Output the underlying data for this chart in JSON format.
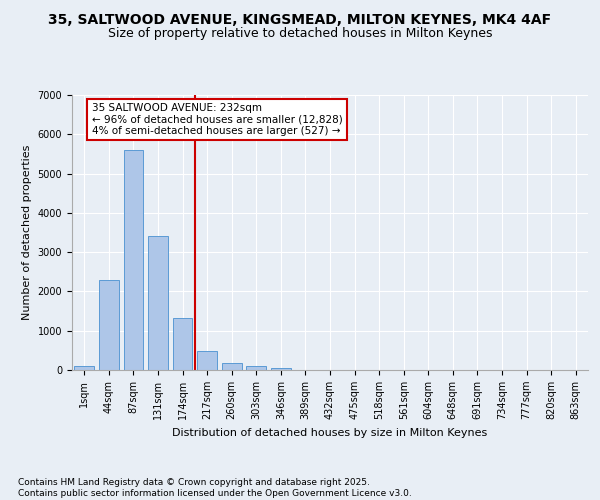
{
  "title_line1": "35, SALTWOOD AVENUE, KINGSMEAD, MILTON KEYNES, MK4 4AF",
  "title_line2": "Size of property relative to detached houses in Milton Keynes",
  "xlabel": "Distribution of detached houses by size in Milton Keynes",
  "ylabel": "Number of detached properties",
  "categories": [
    "1sqm",
    "44sqm",
    "87sqm",
    "131sqm",
    "174sqm",
    "217sqm",
    "260sqm",
    "303sqm",
    "346sqm",
    "389sqm",
    "432sqm",
    "475sqm",
    "518sqm",
    "561sqm",
    "604sqm",
    "648sqm",
    "691sqm",
    "734sqm",
    "777sqm",
    "820sqm",
    "863sqm"
  ],
  "values": [
    100,
    2300,
    5600,
    3420,
    1330,
    490,
    175,
    95,
    55,
    10,
    0,
    0,
    0,
    0,
    0,
    0,
    0,
    0,
    0,
    0,
    0
  ],
  "bar_color": "#aec6e8",
  "bar_edge_color": "#5b9bd5",
  "vline_x_index": 4.5,
  "vline_color": "#cc0000",
  "annotation_text": "35 SALTWOOD AVENUE: 232sqm\n← 96% of detached houses are smaller (12,828)\n4% of semi-detached houses are larger (527) →",
  "annotation_box_color": "#ffffff",
  "annotation_box_edge_color": "#cc0000",
  "ylim": [
    0,
    7000
  ],
  "yticks": [
    0,
    1000,
    2000,
    3000,
    4000,
    5000,
    6000,
    7000
  ],
  "bg_color": "#e8eef5",
  "plot_bg_color": "#e8eef5",
  "footer_text": "Contains HM Land Registry data © Crown copyright and database right 2025.\nContains public sector information licensed under the Open Government Licence v3.0.",
  "title_fontsize": 10,
  "subtitle_fontsize": 9,
  "annotation_fontsize": 7.5,
  "footer_fontsize": 6.5,
  "ylabel_fontsize": 8,
  "xlabel_fontsize": 8,
  "tick_fontsize": 7
}
